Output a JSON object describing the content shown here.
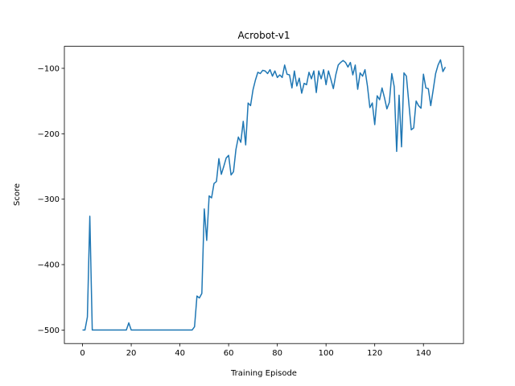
{
  "chart_data": {
    "type": "line",
    "title": "Acrobot-v1",
    "x_label": "Training Episode",
    "y_label": "Score",
    "x": [
      0,
      1,
      2,
      3,
      4,
      5,
      6,
      7,
      8,
      9,
      10,
      11,
      12,
      13,
      14,
      15,
      16,
      17,
      18,
      19,
      20,
      21,
      22,
      23,
      24,
      25,
      26,
      27,
      28,
      29,
      30,
      31,
      32,
      33,
      34,
      35,
      36,
      37,
      38,
      39,
      40,
      41,
      42,
      43,
      44,
      45,
      46,
      47,
      48,
      49,
      50,
      51,
      52,
      53,
      54,
      55,
      56,
      57,
      58,
      59,
      60,
      61,
      62,
      63,
      64,
      65,
      66,
      67,
      68,
      69,
      70,
      71,
      72,
      73,
      74,
      75,
      76,
      77,
      78,
      79,
      80,
      81,
      82,
      83,
      84,
      85,
      86,
      87,
      88,
      89,
      90,
      91,
      92,
      93,
      94,
      95,
      96,
      97,
      98,
      99,
      100,
      101,
      102,
      103,
      104,
      105,
      106,
      107,
      108,
      109,
      110,
      111,
      112,
      113,
      114,
      115,
      116,
      117,
      118,
      119,
      120,
      121,
      122,
      123,
      124,
      125,
      126,
      127,
      128,
      129,
      130,
      131,
      132,
      133,
      134,
      135,
      136,
      137,
      138,
      139,
      140,
      141,
      142,
      143,
      144,
      145,
      146,
      147,
      148,
      149
    ],
    "series": [
      {
        "color": "#1f77b4",
        "values": [
          -500,
          -500,
          -480,
          -326,
          -500,
          -500,
          -500,
          -500,
          -500,
          -500,
          -500,
          -500,
          -500,
          -500,
          -500,
          -500,
          -500,
          -500,
          -500,
          -489,
          -500,
          -500,
          -500,
          -500,
          -500,
          -500,
          -500,
          -500,
          -500,
          -500,
          -500,
          -500,
          -500,
          -500,
          -500,
          -500,
          -500,
          -500,
          -500,
          -500,
          -500,
          -500,
          -500,
          -500,
          -500,
          -500,
          -495,
          -448,
          -451,
          -444,
          -315,
          -363,
          -295,
          -298,
          -276,
          -273,
          -238,
          -262,
          -250,
          -237,
          -233,
          -263,
          -258,
          -224,
          -205,
          -213,
          -181,
          -217,
          -153,
          -157,
          -133,
          -118,
          -106,
          -108,
          -103,
          -104,
          -108,
          -102,
          -112,
          -104,
          -114,
          -110,
          -114,
          -95,
          -109,
          -110,
          -130,
          -104,
          -127,
          -115,
          -138,
          -123,
          -125,
          -106,
          -116,
          -104,
          -137,
          -104,
          -116,
          -102,
          -125,
          -104,
          -117,
          -131,
          -110,
          -95,
          -91,
          -88,
          -91,
          -98,
          -91,
          -110,
          -95,
          -132,
          -107,
          -112,
          -102,
          -127,
          -160,
          -153,
          -186,
          -142,
          -148,
          -130,
          -145,
          -162,
          -152,
          -108,
          -128,
          -227,
          -141,
          -220,
          -107,
          -112,
          -153,
          -194,
          -191,
          -150,
          -157,
          -161,
          -109,
          -130,
          -131,
          -157,
          -133,
          -108,
          -95,
          -87,
          -105,
          -98
        ]
      }
    ],
    "xlim": [
      -7.45,
      156.45
    ],
    "ylim": [
      -520.65,
      -66.35
    ],
    "xticks": [
      0,
      20,
      40,
      60,
      80,
      100,
      120,
      140
    ],
    "yticks": [
      {
        "value": -500,
        "label": "−500"
      },
      {
        "value": -400,
        "label": "−400"
      },
      {
        "value": -300,
        "label": "−300"
      },
      {
        "value": -200,
        "label": "−200"
      },
      {
        "value": -100,
        "label": "−100"
      }
    ]
  }
}
